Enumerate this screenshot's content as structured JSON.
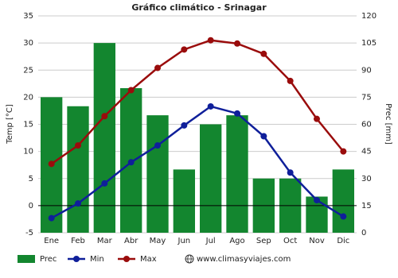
{
  "chart_data": {
    "type": "combo",
    "title": "Gráfico climático - Srinagar",
    "ylabel": "Temp [°C]",
    "y2label": "Prec [mm]",
    "categories": [
      "Ene",
      "Feb",
      "Mar",
      "Abr",
      "May",
      "Jun",
      "Jul",
      "Ago",
      "Sep",
      "Oct",
      "Nov",
      "Dic"
    ],
    "series": [
      {
        "name": "Prec",
        "type": "bar",
        "axis": "y2",
        "color": "#13862f",
        "values": [
          75,
          70,
          105,
          80,
          65,
          35,
          60,
          65,
          30,
          30,
          20,
          35
        ]
      },
      {
        "name": "Min",
        "type": "line",
        "color": "#0f1f9a",
        "values": [
          -2.3,
          0.4,
          4.1,
          8.0,
          11.1,
          14.8,
          18.3,
          17.0,
          12.8,
          6.1,
          1.0,
          -2.0
        ]
      },
      {
        "name": "Max",
        "type": "line",
        "color": "#9a0c0c",
        "values": [
          7.7,
          11.1,
          16.5,
          21.3,
          25.4,
          28.8,
          30.5,
          29.9,
          28.0,
          23.0,
          16.0,
          10.0
        ]
      }
    ],
    "ylim": [
      -5,
      35
    ],
    "yticks": [
      -5,
      0,
      5,
      10,
      15,
      20,
      25,
      30,
      35
    ],
    "y2lim": [
      0,
      120
    ],
    "y2ticks": [
      0,
      15,
      30,
      45,
      60,
      75,
      90,
      105,
      120
    ],
    "grid": true,
    "legend": "bottom",
    "watermark": "www.climasyviajes.com"
  }
}
